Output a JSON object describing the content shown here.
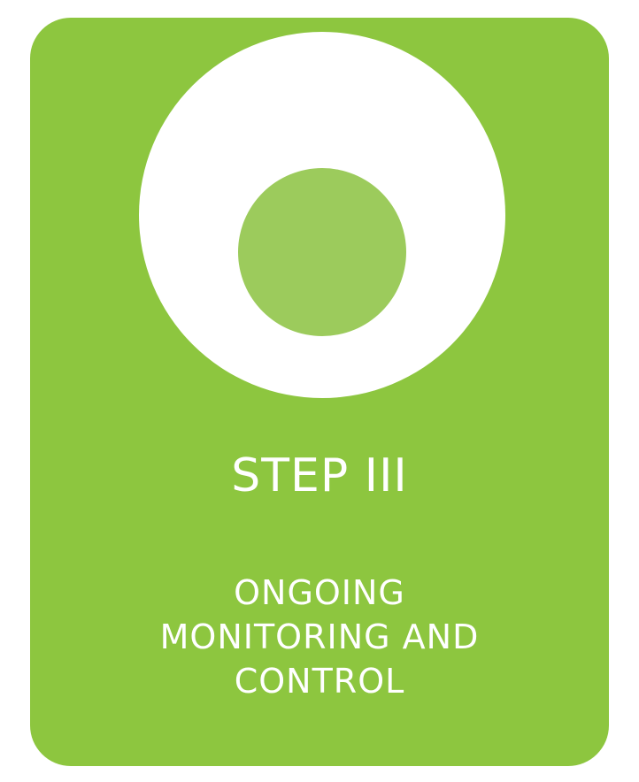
{
  "card": {
    "background_color": "#8dc63f",
    "ring_color": "#ffffff",
    "dot_color": "#9ccb5c",
    "icon": "circle-target-icon"
  },
  "step_title": "STEP III",
  "subtitle_lines": [
    "ONGOING",
    "MONITORING AND",
    "CONTROL"
  ]
}
